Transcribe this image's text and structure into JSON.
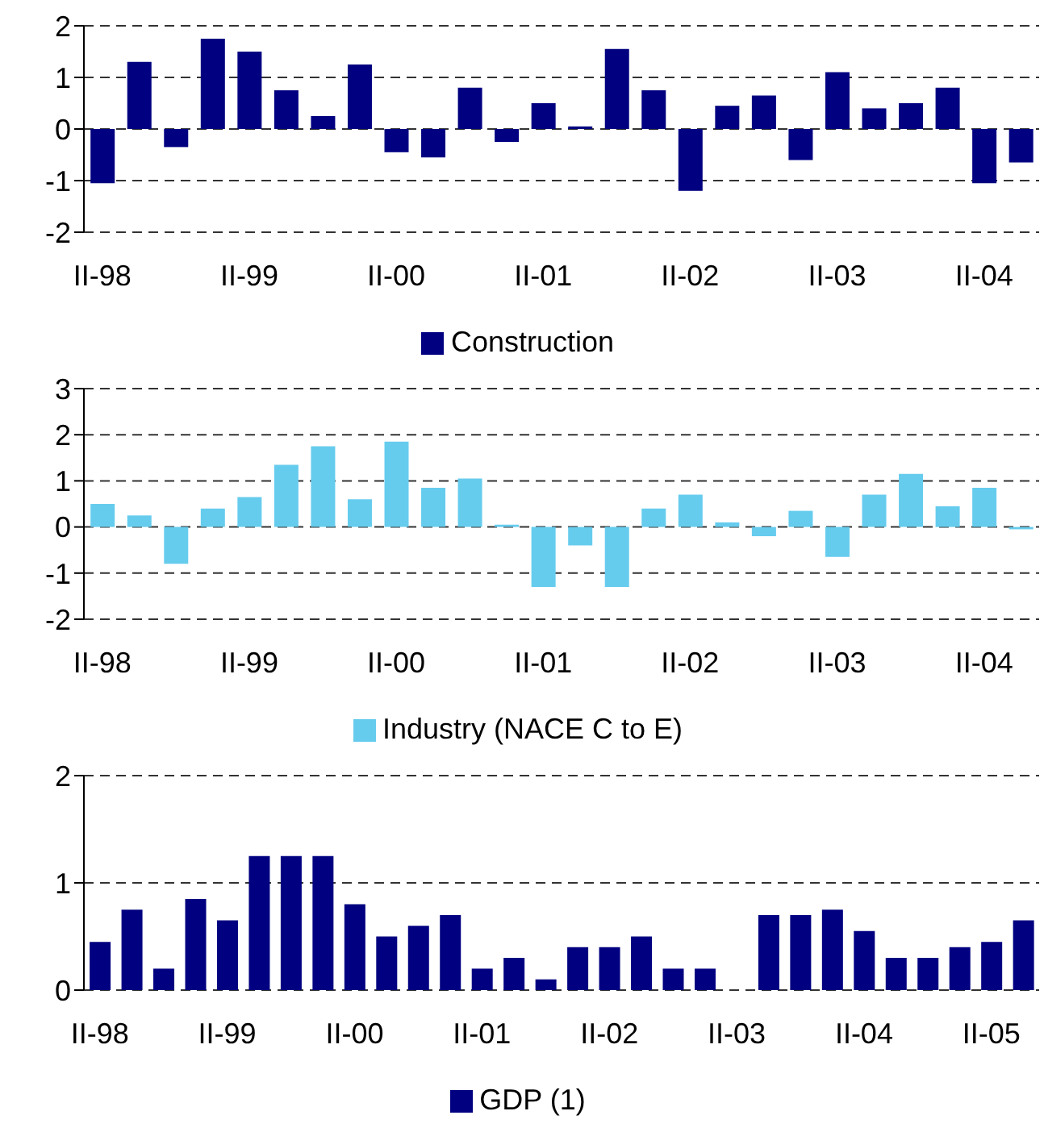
{
  "chart_data": [
    {
      "type": "bar",
      "categories": [
        "II-98",
        null,
        null,
        null,
        "II-99",
        null,
        null,
        null,
        "II-00",
        null,
        null,
        null,
        "II-01",
        null,
        null,
        null,
        "II-02",
        null,
        null,
        null,
        "II-03",
        null,
        null,
        null,
        "II-04",
        null
      ],
      "series": [
        {
          "name": "Construction",
          "color": "#000080",
          "values": [
            -1.05,
            1.3,
            -0.35,
            1.75,
            1.5,
            0.75,
            0.25,
            1.25,
            -0.45,
            -0.55,
            0.8,
            -0.25,
            0.5,
            0.05,
            1.55,
            0.75,
            -1.2,
            0.45,
            0.65,
            -0.6,
            1.1,
            0.4,
            0.5,
            0.8,
            -1.05,
            -0.65
          ]
        }
      ],
      "ylim": [
        -2,
        2
      ],
      "yticks": [
        -2,
        -1,
        0,
        1,
        2
      ],
      "grid": "y",
      "legend": "bottom"
    },
    {
      "type": "bar",
      "categories": [
        "II-98",
        null,
        null,
        null,
        "II-99",
        null,
        null,
        null,
        "II-00",
        null,
        null,
        null,
        "II-01",
        null,
        null,
        null,
        "II-02",
        null,
        null,
        null,
        "II-03",
        null,
        null,
        null,
        "II-04",
        null
      ],
      "series": [
        {
          "name": "Industry (NACE C to E)",
          "color": "#66ccee",
          "values": [
            0.5,
            0.25,
            -0.8,
            0.4,
            0.65,
            1.35,
            1.75,
            0.6,
            1.85,
            0.85,
            1.05,
            0.05,
            -1.3,
            -0.4,
            -1.3,
            0.4,
            0.7,
            0.1,
            -0.2,
            0.35,
            -0.65,
            0.7,
            1.15,
            0.45,
            0.85,
            -0.05
          ]
        }
      ],
      "ylim": [
        -2,
        3
      ],
      "yticks": [
        -2,
        -1,
        0,
        1,
        2,
        3
      ],
      "grid": "y",
      "legend": "bottom"
    },
    {
      "type": "bar",
      "categories": [
        "II-98",
        null,
        null,
        null,
        "II-99",
        null,
        null,
        null,
        "II-00",
        null,
        null,
        null,
        "II-01",
        null,
        null,
        null,
        "II-02",
        null,
        null,
        null,
        "II-03",
        null,
        null,
        null,
        "II-04",
        null,
        null,
        null,
        "II-05",
        null
      ],
      "series": [
        {
          "name": "GDP (1)",
          "color": "#000080",
          "values": [
            0.45,
            0.75,
            0.2,
            0.85,
            0.65,
            1.25,
            1.25,
            1.25,
            0.8,
            0.5,
            0.6,
            0.7,
            0.2,
            0.3,
            0.1,
            0.4,
            0.4,
            0.5,
            0.2,
            0.2,
            0,
            0.7,
            0.7,
            0.75,
            0.55,
            0.3,
            0.3,
            0.4,
            0.45,
            0.65
          ]
        }
      ],
      "ylim": [
        0,
        2
      ],
      "yticks": [
        0,
        1,
        2
      ],
      "grid": "y",
      "legend": "bottom"
    }
  ]
}
